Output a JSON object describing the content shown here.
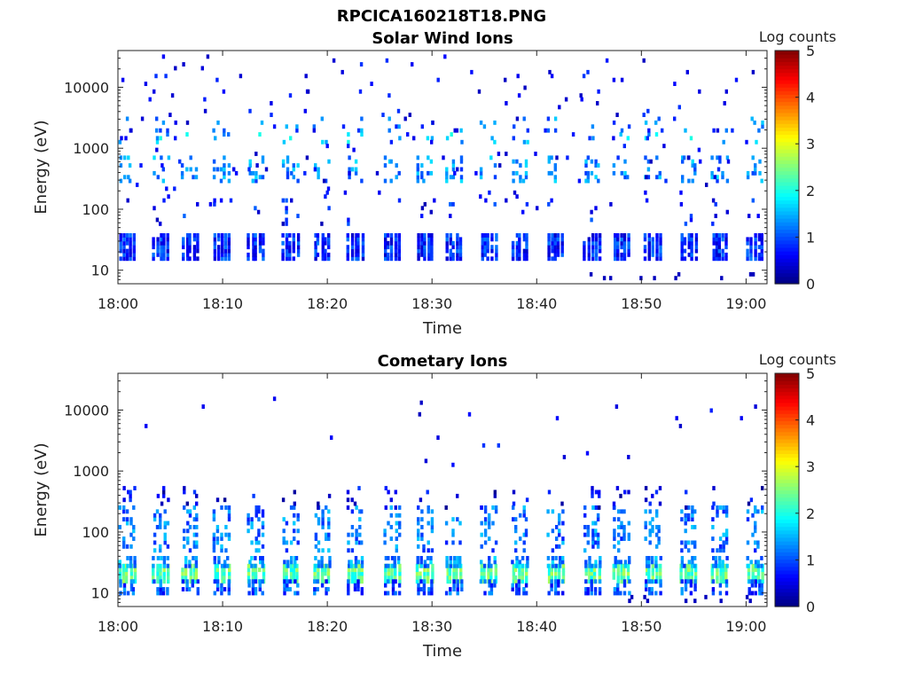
{
  "figure": {
    "title": "RPCICA160218T18.PNG"
  },
  "chart_data": [
    {
      "type": "heatmap",
      "title": "Solar Wind Ions",
      "xlabel": "Time",
      "ylabel": "Energy (eV)",
      "y_scale": "log",
      "ylim": [
        6,
        40000
      ],
      "xlim": [
        "18:00",
        "19:02"
      ],
      "x_ticks": [
        "18:00",
        "18:10",
        "18:20",
        "18:30",
        "18:40",
        "18:50",
        "19:00"
      ],
      "y_ticks": [
        "10",
        "100",
        "1000",
        "10000"
      ],
      "colorbar": {
        "label": "Log counts",
        "ticks": [
          "0",
          "1",
          "2",
          "3",
          "4",
          "5"
        ],
        "range": [
          0,
          5
        ],
        "colormap": "jet"
      },
      "pulse_minutes": [
        0.1,
        3.3,
        6.1,
        9.1,
        12.4,
        15.7,
        18.7,
        21.9,
        25.4,
        28.5,
        31.3,
        34.6,
        37.6,
        41.0,
        44.5,
        47.3,
        50.3,
        53.7,
        56.7,
        60.1
      ],
      "bands": [
        {
          "energy_ev": [
            16,
            40
          ],
          "log_counts": 0.8,
          "coverage": 0.9
        },
        {
          "energy_ev": [
            300,
            700
          ],
          "log_counts": 1.3,
          "coverage": 0.3
        },
        {
          "energy_ev": [
            1200,
            1800
          ],
          "log_counts": 1.6,
          "coverage": 0.12
        },
        {
          "energy_ev": [
            2000,
            3000
          ],
          "log_counts": 1.2,
          "coverage": 0.1
        },
        {
          "energy_ev": [
            60,
            150
          ],
          "log_counts": 0.7,
          "coverage": 0.08
        }
      ],
      "scatter_range_ev": [
        100,
        30000
      ]
    },
    {
      "type": "heatmap",
      "title": "Cometary Ions",
      "xlabel": "Time",
      "ylabel": "Energy (eV)",
      "y_scale": "log",
      "ylim": [
        6,
        40000
      ],
      "xlim": [
        "18:00",
        "19:02"
      ],
      "x_ticks": [
        "18:00",
        "18:10",
        "18:20",
        "18:30",
        "18:40",
        "18:50",
        "19:00"
      ],
      "y_ticks": [
        "10",
        "100",
        "1000",
        "10000"
      ],
      "colorbar": {
        "label": "Log counts",
        "ticks": [
          "0",
          "1",
          "2",
          "3",
          "4",
          "5"
        ],
        "range": [
          0,
          5
        ],
        "colormap": "jet"
      },
      "pulse_minutes": [
        0.1,
        3.3,
        6.1,
        9.1,
        12.4,
        15.7,
        18.7,
        21.9,
        25.4,
        28.5,
        31.3,
        34.6,
        37.6,
        41.0,
        44.5,
        47.3,
        50.3,
        53.7,
        56.7,
        60.1
      ],
      "bands": [
        {
          "energy_ev": [
            16,
            30
          ],
          "log_counts": 2.3,
          "coverage": 0.95
        },
        {
          "energy_ev": [
            10,
            16
          ],
          "log_counts": 1.0,
          "coverage": 0.6
        },
        {
          "energy_ev": [
            30,
            40
          ],
          "log_counts": 1.3,
          "coverage": 0.7
        },
        {
          "energy_ev": [
            50,
            250
          ],
          "log_counts": 1.2,
          "coverage": 0.35
        },
        {
          "energy_ev": [
            250,
            500
          ],
          "log_counts": 0.5,
          "coverage": 0.12
        }
      ],
      "scatter_range_ev": [
        1000,
        15000
      ]
    }
  ]
}
